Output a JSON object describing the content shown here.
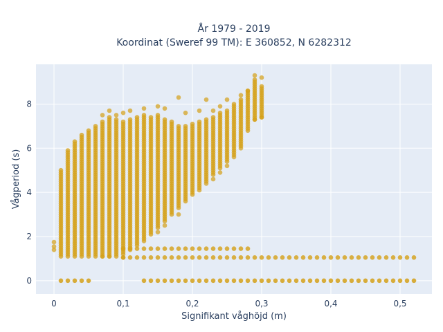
{
  "chart_data": {
    "type": "scatter",
    "title_line1": "År 1979 - 2019",
    "title_line2": "Koordinat (Sweref 99 TM): E 360852, N 6282312",
    "xlabel": "Signifikant våghöjd (m)",
    "ylabel": "Vågperiod (s)",
    "xlim": [
      -0.026,
      0.546
    ],
    "ylim": [
      -0.6,
      9.8
    ],
    "xticks": [
      0,
      0.1,
      0.2,
      0.3,
      0.4,
      0.5
    ],
    "xtick_labels": [
      "0",
      "0,1",
      "0,2",
      "0,3",
      "0,4",
      "0,5"
    ],
    "yticks": [
      0,
      2,
      4,
      6,
      8
    ],
    "ytick_labels": [
      "0",
      "2",
      "4",
      "6",
      "8"
    ],
    "grid": true,
    "colors": {
      "marker": "#d4a017",
      "plot_bg": "#e5ecf6",
      "grid": "#ffffff"
    },
    "bands": [
      {
        "x": 0.01,
        "ymin": 1.1,
        "ymax": 5.0
      },
      {
        "x": 0.02,
        "ymin": 1.1,
        "ymax": 5.9
      },
      {
        "x": 0.03,
        "ymin": 1.1,
        "ymax": 6.3
      },
      {
        "x": 0.04,
        "ymin": 1.1,
        "ymax": 6.6
      },
      {
        "x": 0.05,
        "ymin": 1.1,
        "ymax": 6.8
      },
      {
        "x": 0.06,
        "ymin": 1.1,
        "ymax": 7.0
      },
      {
        "x": 0.07,
        "ymin": 1.1,
        "ymax": 7.2
      },
      {
        "x": 0.08,
        "ymin": 1.1,
        "ymax": 7.4
      },
      {
        "x": 0.09,
        "ymin": 1.1,
        "ymax": 7.3
      },
      {
        "x": 0.1,
        "ymin": 1.2,
        "ymax": 7.2
      },
      {
        "x": 0.11,
        "ymin": 1.4,
        "ymax": 7.3
      },
      {
        "x": 0.12,
        "ymin": 1.6,
        "ymax": 7.4
      },
      {
        "x": 0.13,
        "ymin": 1.8,
        "ymax": 7.5
      },
      {
        "x": 0.14,
        "ymin": 2.1,
        "ymax": 7.4
      },
      {
        "x": 0.15,
        "ymin": 2.4,
        "ymax": 7.5
      },
      {
        "x": 0.16,
        "ymin": 2.7,
        "ymax": 7.3
      },
      {
        "x": 0.17,
        "ymin": 3.0,
        "ymax": 7.2
      },
      {
        "x": 0.18,
        "ymin": 3.3,
        "ymax": 7.0
      },
      {
        "x": 0.19,
        "ymin": 3.6,
        "ymax": 7.0
      },
      {
        "x": 0.2,
        "ymin": 3.9,
        "ymax": 7.1
      },
      {
        "x": 0.21,
        "ymin": 4.2,
        "ymax": 7.2
      },
      {
        "x": 0.22,
        "ymin": 4.5,
        "ymax": 7.3
      },
      {
        "x": 0.23,
        "ymin": 4.8,
        "ymax": 7.4
      },
      {
        "x": 0.24,
        "ymin": 5.1,
        "ymax": 7.6
      },
      {
        "x": 0.25,
        "ymin": 5.4,
        "ymax": 7.7
      },
      {
        "x": 0.26,
        "ymin": 5.7,
        "ymax": 8.0
      },
      {
        "x": 0.27,
        "ymin": 6.1,
        "ymax": 8.2
      },
      {
        "x": 0.28,
        "ymin": 6.8,
        "ymax": 8.6
      },
      {
        "x": 0.29,
        "ymin": 7.3,
        "ymax": 9.1
      },
      {
        "x": 0.3,
        "ymin": 7.4,
        "ymax": 8.8
      }
    ],
    "row_1_0": {
      "y": 1.05,
      "xmin": 0.1,
      "xmax": 0.52,
      "step": 0.01
    },
    "row_1_5": {
      "y": 1.45,
      "xmin": 0.1,
      "xmax": 0.28,
      "step": 0.01
    },
    "row_0": [
      0.01,
      0.02,
      0.03,
      0.04,
      0.05,
      0.13,
      0.14,
      0.15,
      0.16,
      0.17,
      0.18,
      0.19,
      0.2,
      0.21,
      0.22,
      0.23,
      0.24,
      0.25,
      0.26,
      0.27,
      0.28,
      0.29,
      0.3,
      0.31,
      0.32,
      0.33,
      0.34,
      0.35,
      0.36,
      0.37,
      0.38,
      0.39,
      0.4,
      0.41,
      0.42,
      0.43,
      0.44,
      0.45,
      0.46,
      0.47,
      0.48,
      0.49,
      0.5,
      0.51,
      0.52
    ],
    "outliers": [
      {
        "x": 0.0,
        "y": 1.75
      },
      {
        "x": 0.0,
        "y": 1.4
      },
      {
        "x": 0.0,
        "y": 1.55
      },
      {
        "x": 0.07,
        "y": 7.5
      },
      {
        "x": 0.08,
        "y": 7.7
      },
      {
        "x": 0.09,
        "y": 7.5
      },
      {
        "x": 0.1,
        "y": 7.6
      },
      {
        "x": 0.11,
        "y": 7.7
      },
      {
        "x": 0.13,
        "y": 7.8
      },
      {
        "x": 0.15,
        "y": 7.9
      },
      {
        "x": 0.16,
        "y": 7.8
      },
      {
        "x": 0.18,
        "y": 8.3
      },
      {
        "x": 0.19,
        "y": 7.6
      },
      {
        "x": 0.21,
        "y": 7.7
      },
      {
        "x": 0.22,
        "y": 8.2
      },
      {
        "x": 0.23,
        "y": 7.7
      },
      {
        "x": 0.24,
        "y": 7.9
      },
      {
        "x": 0.25,
        "y": 8.2
      },
      {
        "x": 0.25,
        "y": 5.2
      },
      {
        "x": 0.24,
        "y": 4.9
      },
      {
        "x": 0.23,
        "y": 4.6
      },
      {
        "x": 0.22,
        "y": 4.4
      },
      {
        "x": 0.21,
        "y": 4.1
      },
      {
        "x": 0.18,
        "y": 3.0
      },
      {
        "x": 0.16,
        "y": 2.5
      },
      {
        "x": 0.15,
        "y": 2.2
      },
      {
        "x": 0.26,
        "y": 5.6
      },
      {
        "x": 0.27,
        "y": 6.0
      },
      {
        "x": 0.27,
        "y": 8.4
      },
      {
        "x": 0.28,
        "y": 8.6
      },
      {
        "x": 0.29,
        "y": 9.3
      },
      {
        "x": 0.3,
        "y": 9.2
      },
      {
        "x": 0.29,
        "y": 7.3
      },
      {
        "x": 0.3,
        "y": 7.4
      },
      {
        "x": 0.08,
        "y": 1.1
      },
      {
        "x": 0.1,
        "y": 1.05
      },
      {
        "x": 0.07,
        "y": 1.1
      }
    ]
  }
}
